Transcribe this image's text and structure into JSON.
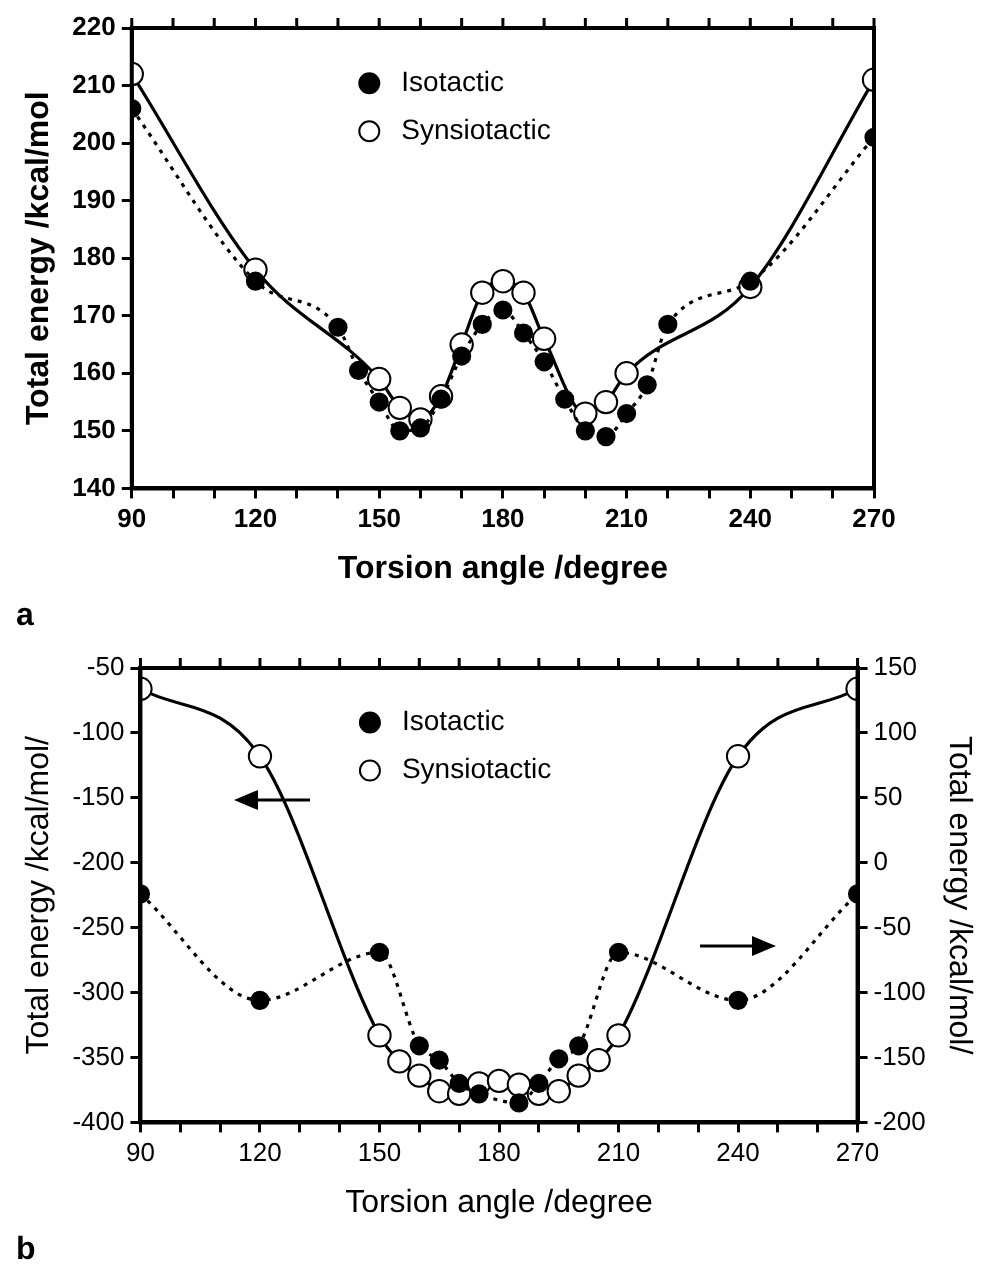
{
  "chart_data": [
    {
      "type": "line",
      "xlabel": "Torsion angle /degree",
      "ylabel": "Total energy /kcal/mol",
      "annotations": [
        "a"
      ],
      "legend": "top",
      "marker": "circle",
      "xlim": [
        90,
        270
      ],
      "xticks": [
        90,
        {
          "value": 100,
          "label": null
        },
        {
          "value": 110,
          "label": null
        },
        120,
        {
          "value": 130,
          "label": null
        },
        {
          "value": 140,
          "label": null
        },
        150,
        {
          "value": 160,
          "label": null
        },
        {
          "value": 170,
          "label": null
        },
        180,
        {
          "value": 190,
          "label": null
        },
        {
          "value": 200,
          "label": null
        },
        210,
        {
          "value": 220,
          "label": null
        },
        {
          "value": 230,
          "label": null
        },
        240,
        {
          "value": 250,
          "label": null
        },
        {
          "value": 260,
          "label": null
        },
        270
      ],
      "ylim": [
        140,
        220
      ],
      "yticks": [
        140,
        150,
        160,
        170,
        180,
        190,
        200,
        210,
        220
      ],
      "series": [
        {
          "name": "Isotactic",
          "color": "#000000",
          "line_style": "dotted",
          "x": [
            90,
            120,
            140,
            145,
            150,
            155,
            160,
            165,
            170,
            175,
            180,
            185,
            190,
            195,
            200,
            205,
            210,
            215,
            220,
            240,
            270
          ],
          "values": [
            206,
            176,
            168,
            160.5,
            155,
            150,
            150.5,
            155.5,
            163,
            168.5,
            171,
            167,
            162,
            155.5,
            150,
            149,
            153,
            158,
            168.5,
            176,
            201
          ]
        },
        {
          "name": "Synsiotactic",
          "color": "#ffffff",
          "line_style": "solid",
          "x": [
            90,
            120,
            150,
            155,
            160,
            165,
            170,
            175,
            180,
            185,
            190,
            200,
            205,
            210,
            240,
            270
          ],
          "values": [
            212,
            178,
            159,
            154,
            152,
            156,
            165,
            174,
            176,
            174,
            166,
            153,
            155,
            160,
            175,
            211
          ]
        }
      ]
    },
    {
      "type": "line",
      "xlabel": "Torsion angle /degree",
      "ylabel": "Total energy /kcal/mol/",
      "y2label": "Total energy /kcal/mol/",
      "annotations": [
        "b"
      ],
      "legend": "top",
      "marker": "circle",
      "xlim": [
        90,
        270
      ],
      "xticks": [
        90,
        {
          "value": 100,
          "label": null
        },
        {
          "value": 110,
          "label": null
        },
        120,
        {
          "value": 130,
          "label": null
        },
        {
          "value": 140,
          "label": null
        },
        150,
        {
          "value": 160,
          "label": null
        },
        {
          "value": 170,
          "label": null
        },
        180,
        {
          "value": 190,
          "label": null
        },
        {
          "value": 200,
          "label": null
        },
        210,
        {
          "value": 220,
          "label": null
        },
        {
          "value": 230,
          "label": null
        },
        240,
        {
          "value": 250,
          "label": null
        },
        {
          "value": 260,
          "label": null
        },
        270
      ],
      "ylim": [
        -400,
        -50
      ],
      "yticks": [
        -400,
        -350,
        -300,
        -250,
        -200,
        -150,
        -100,
        -50
      ],
      "y2lim": [
        -200,
        150
      ],
      "y2ticks": [
        -200,
        -150,
        -100,
        -50,
        0,
        50,
        100,
        150
      ],
      "series": [
        {
          "name": "Isotactic",
          "color": "#000000",
          "line_style": "dotted",
          "axis": "y2",
          "x": [
            90,
            120,
            150,
            160,
            165,
            170,
            175,
            185,
            190,
            195,
            200,
            210,
            240,
            270
          ],
          "values": [
            -24,
            -106,
            -69,
            -141,
            -152,
            -170,
            -178,
            -185,
            -170,
            -151,
            -141,
            -69,
            -106,
            -24
          ]
        },
        {
          "name": "Synsiotactic",
          "color": "#ffffff",
          "line_style": "solid",
          "x": [
            90,
            120,
            150,
            155,
            160,
            165,
            170,
            175,
            180,
            185,
            190,
            195,
            200,
            205,
            210,
            240,
            270
          ],
          "values": [
            -66,
            -118,
            -333,
            -353,
            -364,
            -376,
            -378,
            -370,
            -368,
            -371,
            -378,
            -376,
            -364,
            -352,
            -333,
            -118,
            -66
          ]
        }
      ]
    }
  ]
}
